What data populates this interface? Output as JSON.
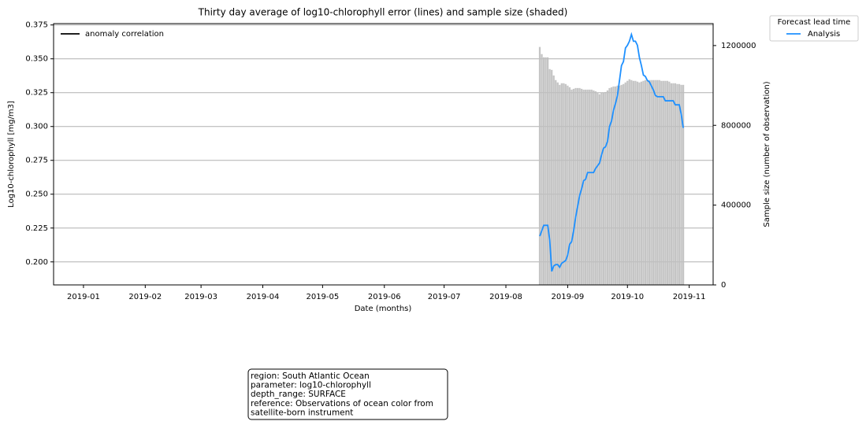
{
  "chart_data": {
    "type": "line",
    "title": "Thirty day average of log10-chlorophyll error (lines) and sample size (shaded)",
    "x_label": "Date (months)",
    "y_label": "Log10-chlorophyll [mg/m3]",
    "y2_label": "Sample size (number of observation)",
    "xlim": [
      -15,
      316
    ],
    "xticks": [
      {
        "value": 0,
        "label": "2019-01"
      },
      {
        "value": 31,
        "label": "2019-02"
      },
      {
        "value": 59,
        "label": "2019-03"
      },
      {
        "value": 90,
        "label": "2019-04"
      },
      {
        "value": 120,
        "label": "2019-05"
      },
      {
        "value": 151,
        "label": "2019-06"
      },
      {
        "value": 181,
        "label": "2019-07"
      },
      {
        "value": 212,
        "label": "2019-08"
      },
      {
        "value": 243,
        "label": "2019-09"
      },
      {
        "value": 273,
        "label": "2019-10"
      },
      {
        "value": 304,
        "label": "2019-11"
      }
    ],
    "ylim": [
      0.183,
      0.376
    ],
    "yticks": [
      {
        "value": 0.2,
        "label": "0.200"
      },
      0.225,
      {
        "value": 0.25,
        "label": "0.250"
      },
      0.275,
      {
        "value": 0.3,
        "label": "0.300"
      },
      0.325,
      {
        "value": 0.35,
        "label": "0.350"
      },
      0.375
    ],
    "y2lim": [
      0,
      1310000
    ],
    "y2ticks": [
      0,
      400000,
      800000,
      1200000
    ],
    "grid": true,
    "x": [
      229,
      230,
      231,
      232,
      233,
      234,
      235,
      236,
      237,
      238,
      239,
      240,
      241,
      242,
      243,
      244,
      245,
      246,
      247,
      248,
      249,
      250,
      251,
      252,
      253,
      254,
      255,
      256,
      257,
      258,
      259,
      260,
      261,
      262,
      263,
      264,
      265,
      266,
      267,
      268,
      269,
      270,
      271,
      272,
      273,
      274,
      275,
      276,
      277,
      278,
      279,
      280,
      281,
      282,
      283,
      284,
      285,
      286,
      287,
      288,
      289,
      290,
      291,
      292,
      293,
      294,
      295,
      296,
      297,
      298,
      299,
      300,
      301
    ],
    "series": [
      {
        "type": "bar",
        "axis": "y2",
        "color": "#bfbfbf",
        "values": [
          1193000,
          1157000,
          1141000,
          1141000,
          1141000,
          1082000,
          1078000,
          1050000,
          1027000,
          1015000,
          1003000,
          1011000,
          1011000,
          1007000,
          999000,
          991000,
          979000,
          983000,
          987000,
          987000,
          987000,
          983000,
          979000,
          979000,
          979000,
          979000,
          979000,
          975000,
          971000,
          964000,
          956000,
          964000,
          964000,
          967000,
          975000,
          987000,
          991000,
          995000,
          995000,
          999000,
          999000,
          1003000,
          1007000,
          1015000,
          1023000,
          1031000,
          1027000,
          1023000,
          1023000,
          1019000,
          1015000,
          1019000,
          1023000,
          1027000,
          1027000,
          1027000,
          1027000,
          1027000,
          1027000,
          1027000,
          1027000,
          1023000,
          1023000,
          1023000,
          1023000,
          1019000,
          1011000,
          1011000,
          1011000,
          1007000,
          1007000,
          1003000,
          1003000
        ]
      },
      {
        "name": "Analysis",
        "color": "#1e90ff",
        "values": [
          0.219,
          0.223,
          0.227,
          0.227,
          0.227,
          0.216,
          0.193,
          0.197,
          0.198,
          0.198,
          0.196,
          0.199,
          0.2,
          0.201,
          0.205,
          0.213,
          0.215,
          0.223,
          0.233,
          0.241,
          0.249,
          0.254,
          0.26,
          0.261,
          0.266,
          0.266,
          0.266,
          0.266,
          0.269,
          0.271,
          0.273,
          0.279,
          0.284,
          0.285,
          0.289,
          0.3,
          0.304,
          0.312,
          0.317,
          0.323,
          0.334,
          0.345,
          0.348,
          0.358,
          0.36,
          0.363,
          0.368,
          0.363,
          0.363,
          0.36,
          0.351,
          0.345,
          0.338,
          0.337,
          0.334,
          0.333,
          0.33,
          0.327,
          0.323,
          0.322,
          0.322,
          0.322,
          0.322,
          0.319,
          0.319,
          0.319,
          0.319,
          0.319,
          0.316,
          0.316,
          0.316,
          0.309,
          0.299
        ]
      }
    ],
    "legend_title": "Forecast lead time",
    "extra_legend": {
      "name": "anomaly correlation",
      "color": "#000000"
    },
    "info_lines": [
      "region: South Atlantic Ocean",
      "parameter: log10-chlorophyll",
      "depth_range: SURFACE",
      "reference: Observations of ocean color from",
      "satellite-born instrument"
    ]
  }
}
